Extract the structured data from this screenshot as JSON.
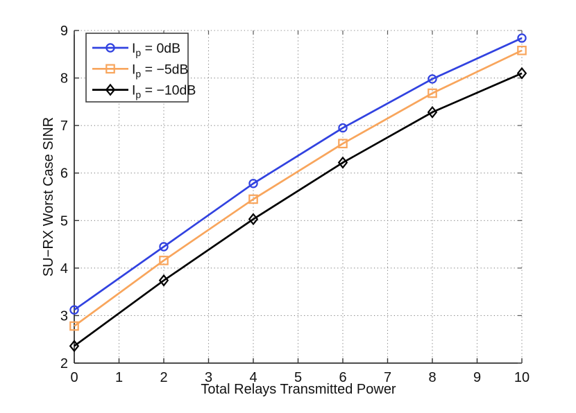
{
  "chart_data": {
    "type": "line",
    "title": "",
    "xlabel": "Total Relays Transmitted Power",
    "ylabel": "SU−RX Worst Case SINR",
    "xlim": [
      0,
      10
    ],
    "ylim": [
      2,
      9
    ],
    "xticks": [
      0,
      1,
      2,
      3,
      4,
      5,
      6,
      7,
      8,
      9,
      10
    ],
    "yticks": [
      2,
      3,
      4,
      5,
      6,
      7,
      8,
      9
    ],
    "grid": "dotted",
    "box": "dotted-top-right",
    "legend_position": "top-left",
    "axis_color": "#333333",
    "grid_color": "#808080",
    "legend_border_color": "#3d3d3d",
    "x": [
      0,
      2,
      4,
      6,
      8,
      10
    ],
    "series": [
      {
        "name": "Ip = 0dB",
        "label": {
          "base": "I",
          "sub": "p",
          "rest": " = 0dB"
        },
        "color": "#3142e0",
        "marker": "circle",
        "values": [
          3.12,
          4.45,
          5.78,
          6.95,
          7.98,
          8.84
        ]
      },
      {
        "name": "Ip = −5dB",
        "label": {
          "base": "I",
          "sub": "p",
          "rest": " = −5dB"
        },
        "color": "#f8a55c",
        "marker": "square",
        "values": [
          2.78,
          4.16,
          5.45,
          6.62,
          7.68,
          8.58
        ]
      },
      {
        "name": "Ip = −10dB",
        "label": {
          "base": "I",
          "sub": "p",
          "rest": " = −10dB"
        },
        "color": "#000000",
        "marker": "diamond",
        "values": [
          2.36,
          3.74,
          5.03,
          6.22,
          7.28,
          8.1
        ]
      }
    ]
  }
}
